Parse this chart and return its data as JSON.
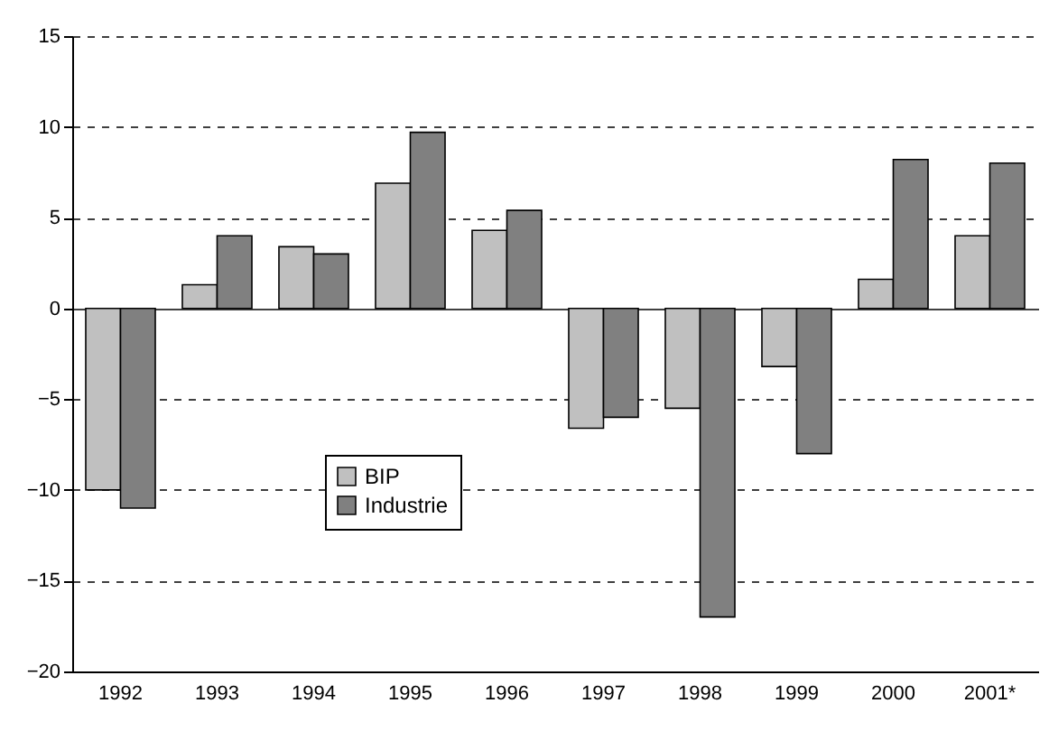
{
  "chart_data": {
    "type": "bar",
    "categories": [
      "1992",
      "1993",
      "1994",
      "1995",
      "1996",
      "1997",
      "1998",
      "1999",
      "2000",
      "2001*"
    ],
    "series": [
      {
        "name": "BIP",
        "color": "#c0c0c0",
        "values": [
          -10,
          1.3,
          3.4,
          6.9,
          4.3,
          -6.6,
          -5.5,
          -3.2,
          1.6,
          4
        ]
      },
      {
        "name": "Industrie",
        "color": "#808080",
        "values": [
          -11,
          4,
          3,
          9.7,
          5.4,
          -6,
          -17,
          -8,
          8.2,
          8
        ]
      }
    ],
    "ylim": [
      -20,
      15
    ],
    "yticks": [
      -20,
      -15,
      -10,
      -5,
      0,
      5,
      10,
      15
    ],
    "grid": "y",
    "legend": "bottom left"
  }
}
